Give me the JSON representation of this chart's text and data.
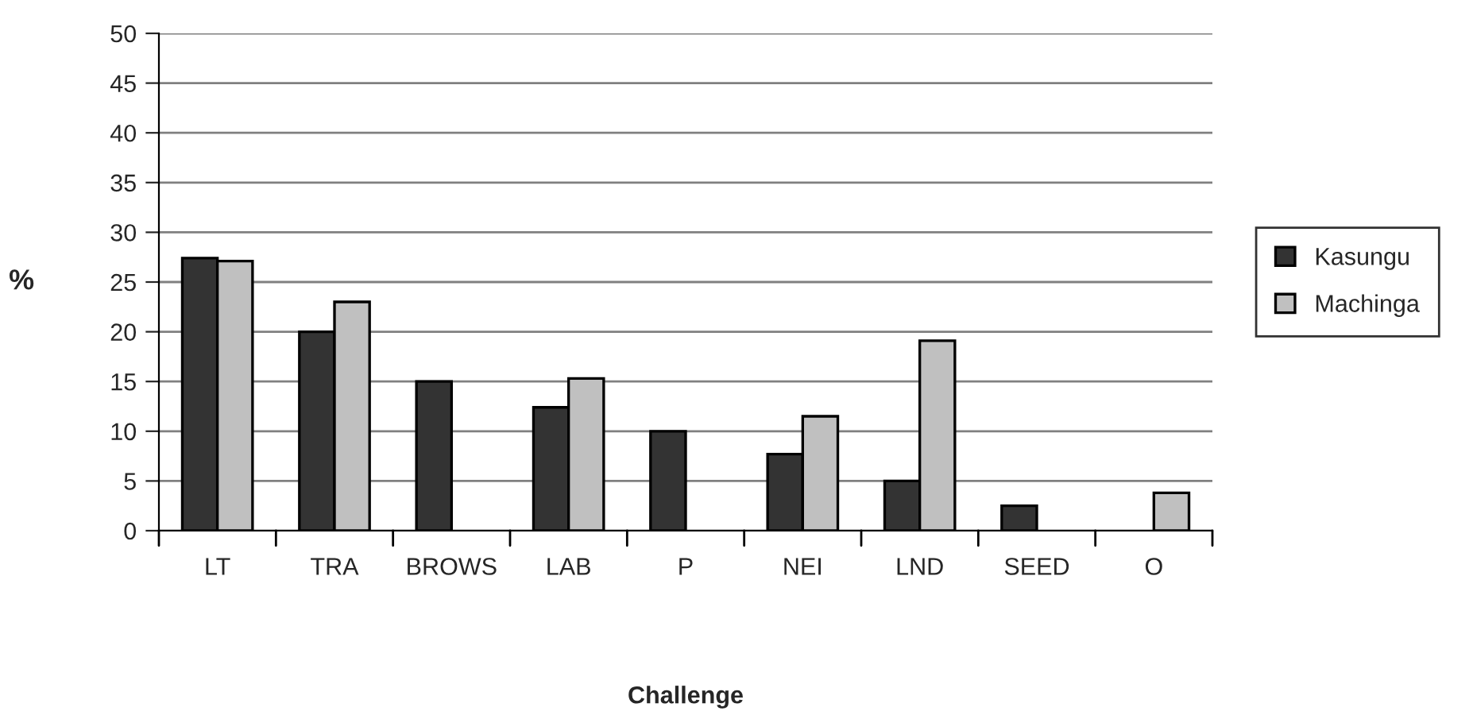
{
  "chart_data": {
    "type": "bar",
    "xlabel": "Challenge",
    "ylabel": "%",
    "categories": [
      "LT",
      "TRA",
      "BROWS",
      "LAB",
      "P",
      "NEI",
      "LND",
      "SEED",
      "O"
    ],
    "series": [
      {
        "name": "Kasungu",
        "color": "#333333",
        "values": [
          27.4,
          20,
          15,
          12.4,
          10,
          7.7,
          5,
          2.5,
          null
        ]
      },
      {
        "name": "Machinga",
        "color": "#c0c0c0",
        "values": [
          27.1,
          23,
          null,
          15.3,
          null,
          11.5,
          19.1,
          null,
          3.8
        ]
      }
    ],
    "ylim": [
      0,
      50
    ],
    "yticks": [
      0,
      5,
      10,
      15,
      20,
      25,
      30,
      35,
      40,
      45,
      50
    ],
    "grid": "y",
    "legend": "right"
  }
}
